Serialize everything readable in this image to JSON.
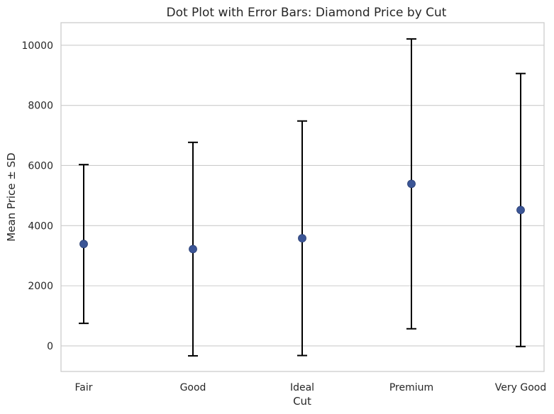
{
  "chart_data": {
    "type": "scatter",
    "title": "Dot Plot with Error Bars: Diamond Price by Cut",
    "xlabel": "Cut",
    "ylabel": "Mean Price ± SD",
    "categories": [
      "Fair",
      "Good",
      "Ideal",
      "Premium",
      "Very Good"
    ],
    "mean": [
      3390,
      3220,
      3580,
      5390,
      4520
    ],
    "sd": [
      2640,
      3550,
      3900,
      4820,
      4540
    ],
    "ylim": [
      -850,
      10750
    ],
    "yticks": [
      0,
      2000,
      4000,
      6000,
      8000,
      10000
    ],
    "ytick_labels": [
      "0",
      "2000",
      "4000",
      "6000",
      "8000",
      "10000"
    ],
    "grid": "horizontal",
    "marker_color": "#3b5596",
    "errorbar_color": "#000000"
  }
}
